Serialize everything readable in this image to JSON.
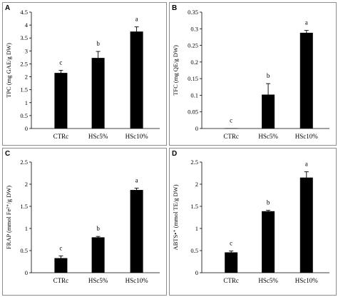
{
  "chart_data": [
    {
      "panel": "A",
      "type": "bar",
      "ylabel": "TPC (mg GAE/g DW)",
      "categories": [
        "CTRc",
        "HSc5%",
        "HSc10%"
      ],
      "values": [
        2.15,
        2.73,
        3.75
      ],
      "errors": [
        0.1,
        0.25,
        0.18
      ],
      "letters": [
        "c",
        "b",
        "a"
      ],
      "ylim": [
        0,
        4.5
      ],
      "yticks": [
        "0",
        "0.5",
        "1",
        "1.5",
        "2",
        "2.5",
        "3",
        "3.5",
        "4",
        "4.5"
      ],
      "bar_color": "#000000"
    },
    {
      "panel": "B",
      "type": "bar",
      "ylabel": "TFC (mg QE/g DW)",
      "categories": [
        "CTRc",
        "HSc5%",
        "HSc10%"
      ],
      "values": [
        0.001,
        0.102,
        0.288
      ],
      "errors": [
        0.0,
        0.033,
        0.007
      ],
      "letters": [
        "c",
        "b",
        "a"
      ],
      "ylim": [
        0,
        0.35
      ],
      "yticks": [
        "0",
        "0.05",
        "0.1",
        "0.15",
        "0.2",
        "0.25",
        "0.3",
        "0.35"
      ],
      "bar_color": "#000000"
    },
    {
      "panel": "C",
      "type": "bar",
      "ylabel": "FRAP (mmol Fe²⁺/g DW)",
      "categories": [
        "CTRc",
        "HSc5%",
        "HSc10%"
      ],
      "values": [
        0.33,
        0.8,
        1.87
      ],
      "errors": [
        0.05,
        0.02,
        0.04
      ],
      "letters": [
        "c",
        "b",
        "a"
      ],
      "ylim": [
        0,
        2.5
      ],
      "yticks": [
        "0",
        "0.5",
        "1",
        "1.5",
        "2",
        "2.5"
      ],
      "bar_color": "#000000"
    },
    {
      "panel": "D",
      "type": "bar",
      "ylabel": "ABTS•⁺ (mmol TE/g DW)",
      "categories": [
        "CTRc",
        "HSc5%",
        "HSc10%"
      ],
      "values": [
        0.46,
        1.39,
        2.15
      ],
      "errors": [
        0.03,
        0.02,
        0.13
      ],
      "letters": [
        "c",
        "b",
        "a"
      ],
      "ylim": [
        0,
        2.5
      ],
      "yticks": [
        "0",
        "0.5",
        "1",
        "1.5",
        "2",
        "2.5"
      ],
      "bar_color": "#000000"
    }
  ]
}
